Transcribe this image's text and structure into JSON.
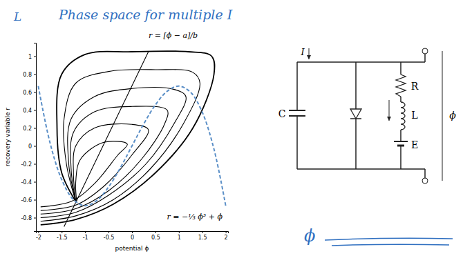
{
  "chart_data": {
    "type": "line",
    "title": "Phase space for multiple I",
    "x_label": "potential ϕ",
    "y_label": "recovery variable r",
    "xlim": [
      -2.05,
      2.05
    ],
    "xticks": [
      -2,
      -1.5,
      -1,
      -0.5,
      0,
      0.5,
      1,
      1.5,
      2
    ],
    "ylim": [
      -0.95,
      1.15
    ],
    "yticks": [
      -0.8,
      -0.6,
      -0.4,
      -0.2,
      0,
      0.2,
      0.4,
      0.6,
      0.8,
      1
    ],
    "annotations": [
      "r = [ϕ − a]/b",
      "r = −⅓ ϕ³ + ϕ",
      "L"
    ],
    "series": [
      {
        "color": "#000000",
        "line_style": "solid",
        "x": [
          -1.95,
          -1.2,
          -0.4,
          0.5,
          1.3,
          1.75,
          1.7,
          1.2,
          0,
          -1,
          -1.5,
          -1.6,
          -1.5,
          -1.2
        ],
        "values": [
          -0.88,
          -0.82,
          -0.65,
          -0.3,
          0.2,
          0.8,
          1.0,
          1.05,
          1.05,
          1.02,
          0.8,
          0.2,
          -0.3,
          -0.62
        ]
      },
      {
        "color": "#000000",
        "line_style": "solid",
        "x": [
          -1.95,
          -1.2,
          -0.4,
          0.4,
          1.1,
          1.45,
          1.3,
          0.5,
          -0.5,
          -1.2,
          -1.45,
          -1.4,
          -1.2
        ],
        "values": [
          -0.84,
          -0.78,
          -0.6,
          -0.25,
          0.25,
          0.7,
          0.82,
          0.85,
          0.83,
          0.7,
          0.3,
          -0.2,
          -0.62
        ]
      },
      {
        "color": "#000000",
        "line_style": "solid",
        "x": [
          -1.95,
          -1.2,
          -0.5,
          0.3,
          0.9,
          1.15,
          0.9,
          0,
          -0.8,
          -1.3,
          -1.35,
          -1.2
        ],
        "values": [
          -0.8,
          -0.74,
          -0.55,
          -0.2,
          0.25,
          0.55,
          0.63,
          0.64,
          0.55,
          0.3,
          -0.2,
          -0.62
        ]
      },
      {
        "color": "#000000",
        "line_style": "solid",
        "x": [
          -1.95,
          -1.2,
          -0.5,
          0.2,
          0.7,
          0.75,
          0,
          -0.8,
          -1.25,
          -1.3,
          -1.2
        ],
        "values": [
          -0.76,
          -0.7,
          -0.5,
          -0.15,
          0.25,
          0.4,
          0.44,
          0.38,
          0.15,
          -0.25,
          -0.62
        ]
      },
      {
        "color": "#000000",
        "line_style": "solid",
        "x": [
          -1.95,
          -1.2,
          -0.6,
          0,
          0.35,
          0,
          -0.8,
          -1.2,
          -1.25,
          -1.2
        ],
        "values": [
          -0.72,
          -0.66,
          -0.45,
          -0.1,
          0.18,
          0.24,
          0.2,
          0.0,
          -0.3,
          -0.62
        ]
      },
      {
        "color": "#000000",
        "line_style": "solid",
        "x": [
          -1.95,
          -1.3,
          -0.8,
          -0.3,
          -0.1,
          -0.6,
          -1.1,
          -1.2,
          -1.18
        ],
        "values": [
          -0.68,
          -0.62,
          -0.42,
          -0.1,
          0.02,
          0.04,
          -0.15,
          -0.4,
          -0.62
        ]
      },
      {
        "color": "#000000",
        "line_style": "solid",
        "x": [
          -1.45,
          0.35
        ],
        "values": [
          -0.9,
          1.05
        ]
      },
      {
        "color": "#5b8fc7",
        "line_style": "dashed",
        "x": [
          -2,
          -1.75,
          -1.5,
          -1.25,
          -1,
          -0.75,
          -0.5,
          -0.25,
          0,
          0.25,
          0.5,
          0.75,
          1,
          1.25,
          1.5,
          1.75,
          2
        ],
        "values": [
          0.667,
          0.036,
          -0.375,
          -0.599,
          -0.667,
          -0.609,
          -0.458,
          -0.245,
          0,
          0.245,
          0.458,
          0.609,
          0.667,
          0.599,
          0.375,
          -0.036,
          -0.667
        ]
      }
    ]
  },
  "circuit": {
    "current": "I",
    "capacitor": "C",
    "resistor": "R",
    "inductor": "L",
    "battery": "E",
    "voltage": "ϕ",
    "note": "ϕ"
  }
}
